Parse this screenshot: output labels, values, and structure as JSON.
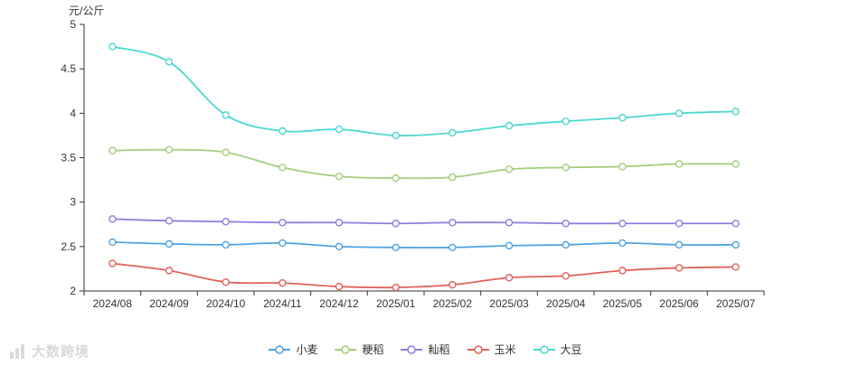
{
  "chart_data": {
    "type": "line",
    "title": "",
    "xlabel": "",
    "ylabel": "元/公斤",
    "unit_label": "元/公斤",
    "ylim": [
      2,
      5
    ],
    "ytick_step": 0.5,
    "grid": false,
    "smooth": true,
    "marker": "hollow-circle",
    "legend_position": "bottom",
    "axis_color": "#333333",
    "text_color": "#333333",
    "categories": [
      "2024/08",
      "2024/09",
      "2024/10",
      "2024/11",
      "2024/12",
      "2025/01",
      "2025/02",
      "2025/03",
      "2025/04",
      "2025/05",
      "2025/06",
      "2025/07"
    ],
    "series": [
      {
        "name": "小麦",
        "color": "#4fa3e3",
        "values": [
          2.55,
          2.53,
          2.52,
          2.54,
          2.5,
          2.49,
          2.49,
          2.51,
          2.52,
          2.54,
          2.52,
          2.52
        ]
      },
      {
        "name": "粳稻",
        "color": "#a3cf7e",
        "values": [
          3.58,
          3.59,
          3.56,
          3.39,
          3.29,
          3.27,
          3.28,
          3.37,
          3.39,
          3.4,
          3.43,
          3.43
        ]
      },
      {
        "name": "籼稻",
        "color": "#907ce0",
        "values": [
          2.81,
          2.79,
          2.78,
          2.77,
          2.77,
          2.76,
          2.77,
          2.77,
          2.76,
          2.76,
          2.76,
          2.76
        ]
      },
      {
        "name": "玉米",
        "color": "#e0635c",
        "values": [
          2.31,
          2.23,
          2.1,
          2.09,
          2.05,
          2.04,
          2.07,
          2.15,
          2.17,
          2.23,
          2.26,
          2.27
        ]
      },
      {
        "name": "大豆",
        "color": "#4dd8d0",
        "values": [
          4.75,
          4.58,
          3.98,
          3.8,
          3.82,
          3.75,
          3.78,
          3.86,
          3.91,
          3.95,
          4.0,
          4.02
        ]
      }
    ]
  },
  "legend": {
    "items": [
      "小麦",
      "粳稻",
      "籼稻",
      "玉米",
      "大豆"
    ]
  },
  "watermark": {
    "text": "大数跨境"
  }
}
